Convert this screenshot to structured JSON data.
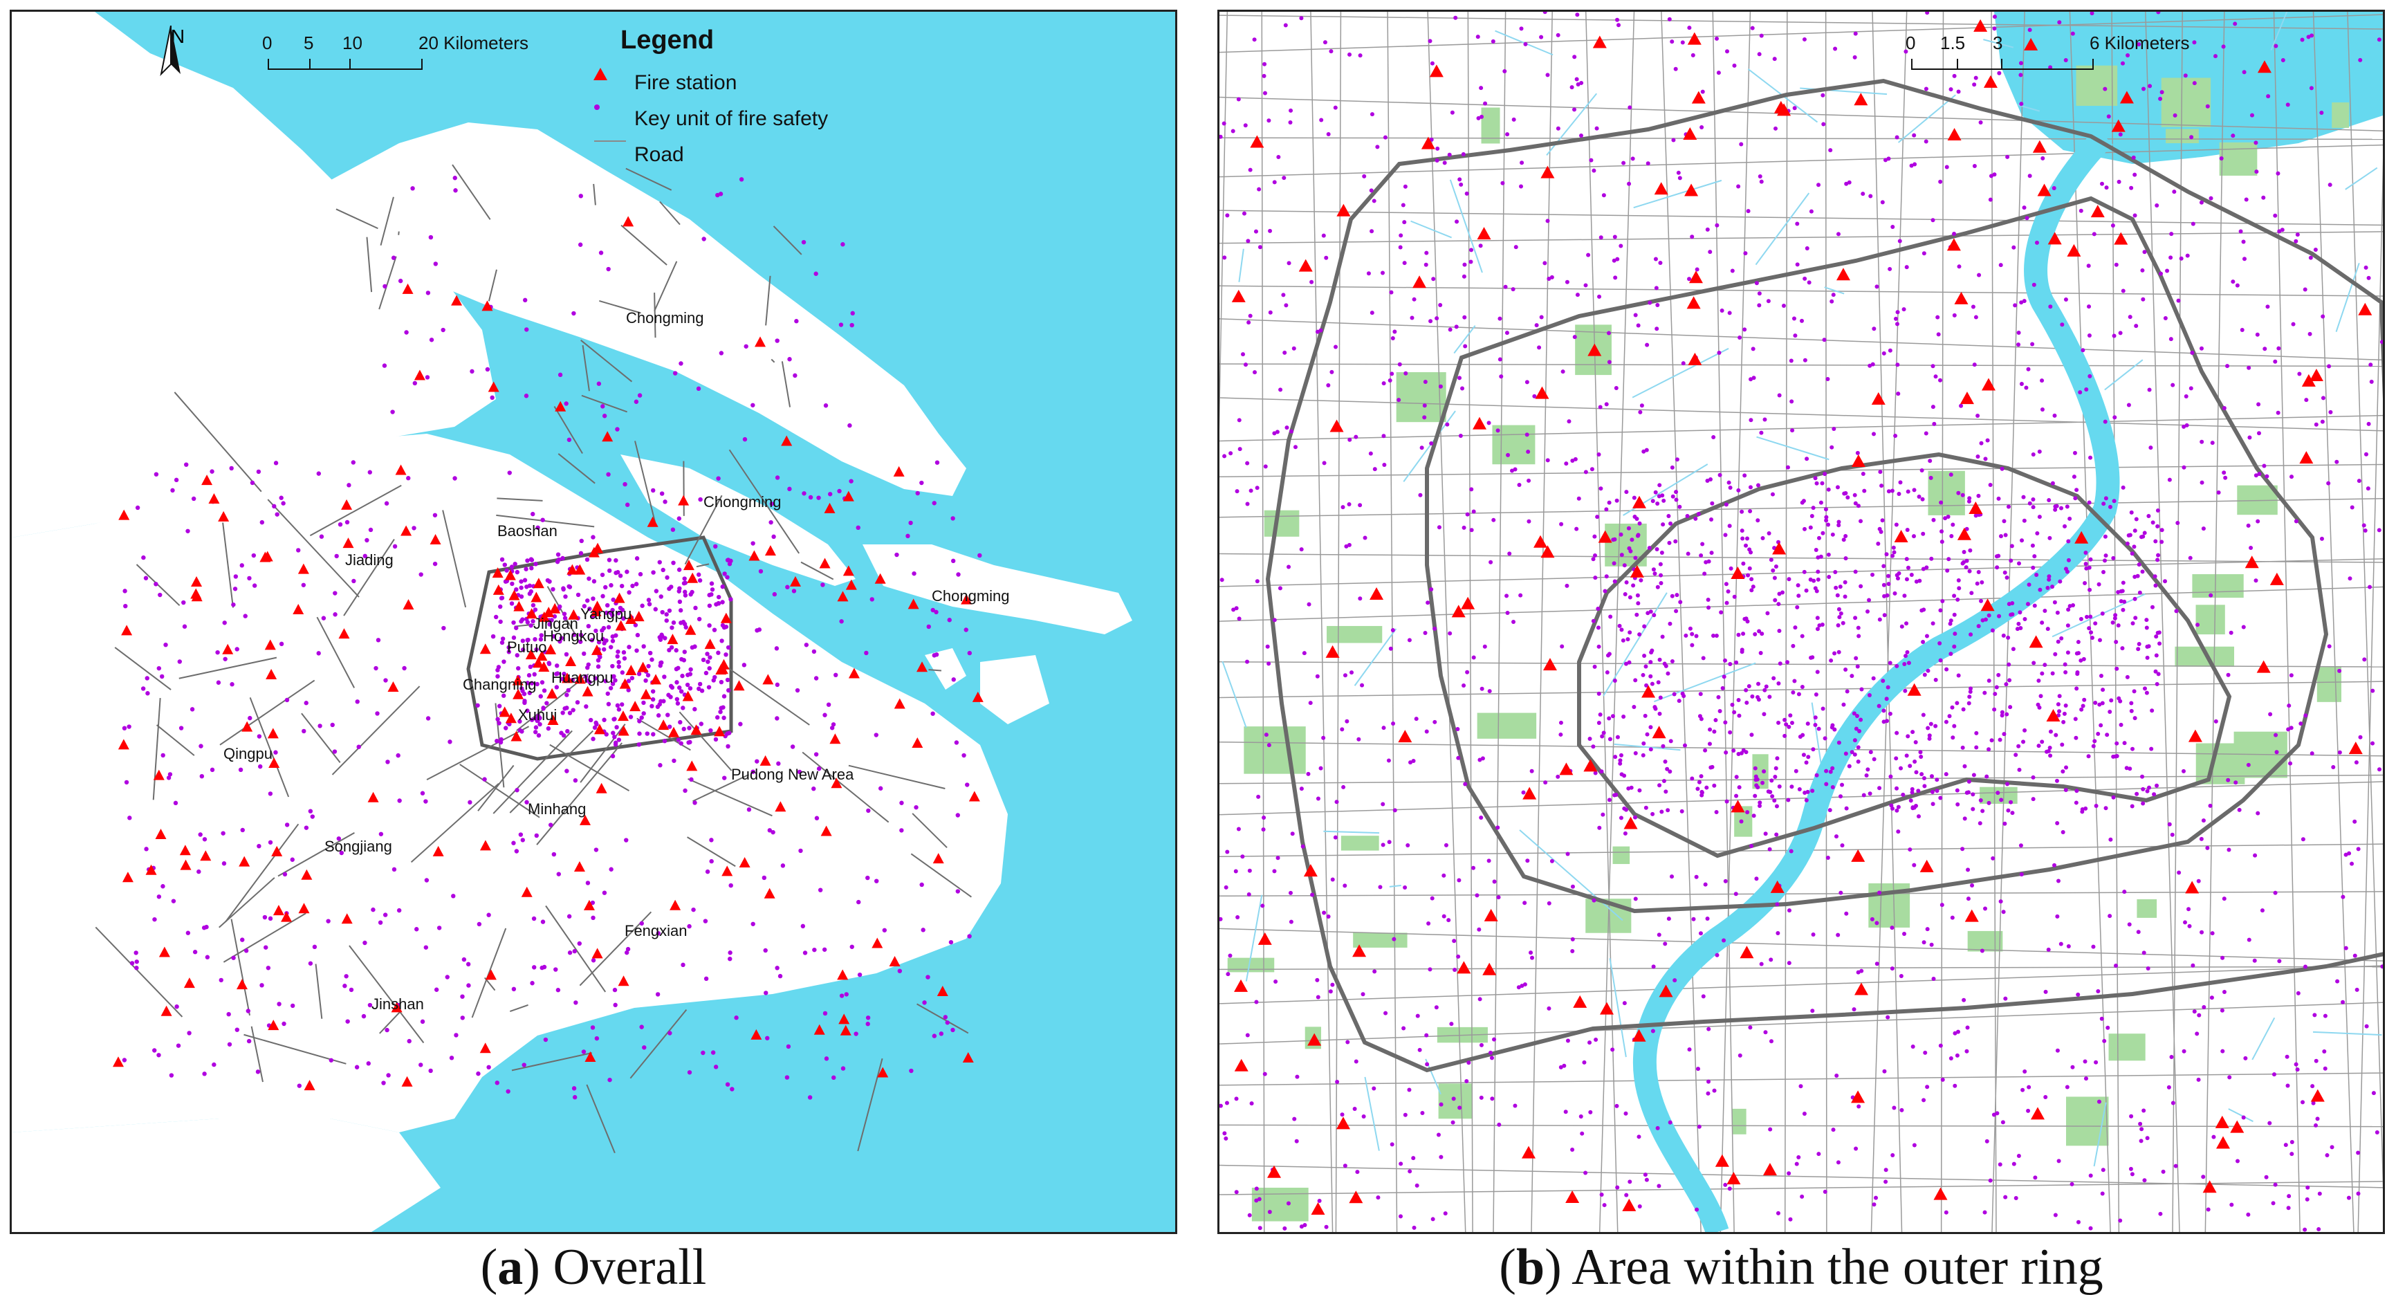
{
  "colors": {
    "water": "#66d9ef",
    "land": "#ffffff",
    "road": "#6d6d6d",
    "ring": "#6d6d6d",
    "fire_station": "#ff0000",
    "key_unit": "#b000e0",
    "green_space": "#a8dca0",
    "frame": "#222222"
  },
  "panel_a": {
    "north_label": "N",
    "scale": {
      "ticks": [
        "0",
        "5",
        "10",
        "20 Kilometers"
      ]
    },
    "legend": {
      "title": "Legend",
      "items": [
        {
          "label": "Fire station",
          "icon": "red-triangle-icon"
        },
        {
          "label": "Key unit of fire safety",
          "icon": "purple-dot-icon"
        },
        {
          "label": "Road",
          "icon": "gray-line-icon"
        }
      ]
    },
    "places": [
      "Chongming",
      "Chongming",
      "Chongming",
      "Baoshan",
      "Jiading",
      "Yangpu",
      "Hongkou",
      "Putuo",
      "Jingan",
      "Changning",
      "Huangpu",
      "Xuhui",
      "Qingpu",
      "Minhang",
      "Pudong New Area",
      "Songjiang",
      "Fengxian",
      "Jinshan"
    ]
  },
  "panel_b": {
    "scale": {
      "ticks": [
        "0",
        "1.5",
        "3",
        "6 Kilometers"
      ]
    }
  },
  "captions": {
    "a_letter": "a",
    "a_text": " Overall",
    "b_letter": "b",
    "b_text": " Area within the outer ring"
  }
}
